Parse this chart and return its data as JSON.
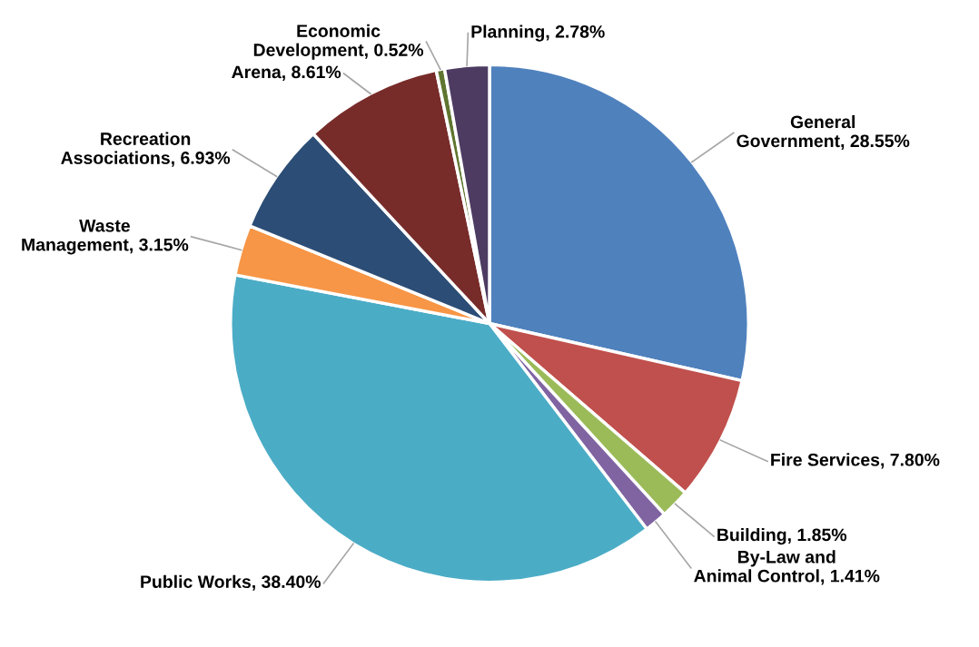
{
  "chart_data": {
    "type": "pie",
    "categories": [
      "General Government",
      "Fire Services",
      "Building",
      "By-Law and Animal Control",
      "Public Works",
      "Waste Management",
      "Recreation Associations",
      "Arena",
      "Economic Development",
      "Planning"
    ],
    "values": [
      28.55,
      7.8,
      1.85,
      1.41,
      38.4,
      3.15,
      6.93,
      8.61,
      0.52,
      2.78
    ],
    "colors": [
      "#4f81bd",
      "#c0504d",
      "#9bbb59",
      "#8064a2",
      "#4bacc6",
      "#f79646",
      "#2c4d75",
      "#772c2a",
      "#5f7530",
      "#4d3b62"
    ],
    "value_labels": [
      "28.55%",
      "7.80%",
      "1.85%",
      "1.41%",
      "38.40%",
      "3.15%",
      "6.93%",
      "8.61%",
      "0.52%",
      "2.78%"
    ],
    "legend": false
  }
}
